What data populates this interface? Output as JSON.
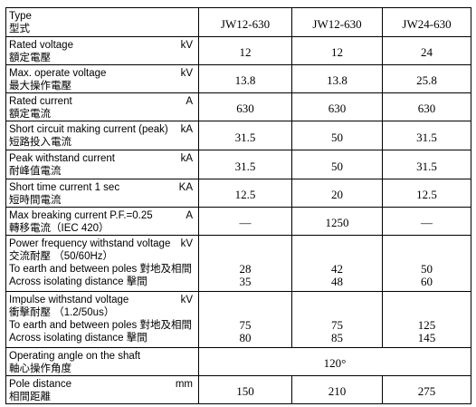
{
  "header": {
    "label": [
      "Type",
      "型式"
    ],
    "values": [
      "JW12-630",
      "JW12-630",
      "JW24-630"
    ]
  },
  "rows": [
    {
      "label": [
        "Rated voltage",
        "額定電壓"
      ],
      "unit": "kV",
      "values": [
        "12",
        "12",
        "24"
      ]
    },
    {
      "label": [
        "Max. operate voltage",
        "最大操作電壓"
      ],
      "unit": "kV",
      "values": [
        "13.8",
        "13.8",
        "25.8"
      ]
    },
    {
      "label": [
        "Rated current",
        "額定電流"
      ],
      "unit": "A",
      "values": [
        "630",
        "630",
        "630"
      ]
    },
    {
      "label": [
        "Short circuit making current (peak)",
        "短路投入電流"
      ],
      "unit": "kA",
      "values": [
        "31.5",
        "50",
        "31.5"
      ]
    },
    {
      "label": [
        "Peak withstand current",
        "耐峰值電流"
      ],
      "unit": "kA",
      "values": [
        "31.5",
        "50",
        "31.5"
      ]
    },
    {
      "label": [
        "Short time current 1 sec",
        "短時間電流"
      ],
      "unit": "KA",
      "values": [
        "12.5",
        "20",
        "12.5"
      ]
    },
    {
      "label": [
        "Max breaking current P.F.=0.25",
        "轉移電流（IEC 420）"
      ],
      "unit": "A",
      "values": [
        "—",
        "1250",
        "—"
      ]
    },
    {
      "label": [
        "Power frequency withstand voltage",
        "交流耐壓 （50/60Hz）",
        "To earth and between poles 對地及相間",
        "Across isolating distance 擊間"
      ],
      "unit": "kV",
      "values": [
        [
          "28",
          "35"
        ],
        [
          "42",
          "48"
        ],
        [
          "50",
          "60"
        ]
      ]
    },
    {
      "label": [
        "Impulse withstand voltage",
        "衝擊耐壓 （1.2/50us）",
        "To earth and between poles 對地及相間",
        "Across isolating distance 擊間"
      ],
      "unit": "kV",
      "values": [
        [
          "75",
          "80"
        ],
        [
          "75",
          "85"
        ],
        [
          "125",
          "145"
        ]
      ]
    },
    {
      "label": [
        "Operating angle on the shaft",
        "軸心操作角度"
      ],
      "values": [
        "120°"
      ]
    },
    {
      "label": [
        "Pole distance",
        "相間距離"
      ],
      "unit": "mm",
      "values": [
        "150",
        "210",
        "275"
      ]
    }
  ]
}
